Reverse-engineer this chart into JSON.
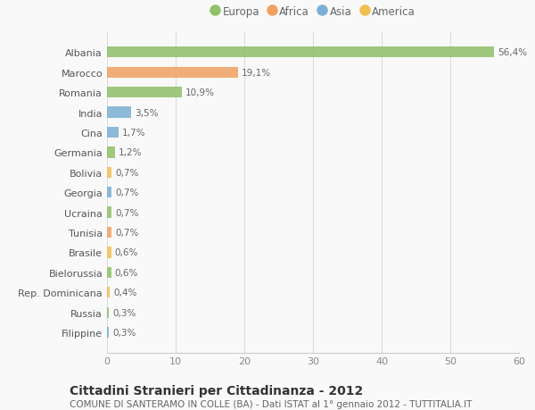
{
  "categories": [
    "Filippine",
    "Russia",
    "Rep. Dominicana",
    "Bielorussia",
    "Brasile",
    "Tunisia",
    "Ucraina",
    "Georgia",
    "Bolivia",
    "Germania",
    "Cina",
    "India",
    "Romania",
    "Marocco",
    "Albania"
  ],
  "values": [
    0.3,
    0.3,
    0.4,
    0.6,
    0.6,
    0.7,
    0.7,
    0.7,
    0.7,
    1.2,
    1.7,
    3.5,
    10.9,
    19.1,
    56.4
  ],
  "labels": [
    "0,3%",
    "0,3%",
    "0,4%",
    "0,6%",
    "0,6%",
    "0,7%",
    "0,7%",
    "0,7%",
    "0,7%",
    "1,2%",
    "1,7%",
    "3,5%",
    "10,9%",
    "19,1%",
    "56,4%"
  ],
  "colors": [
    "#7bafd4",
    "#90c068",
    "#f0c050",
    "#90c068",
    "#f0c050",
    "#f0a060",
    "#90c068",
    "#7bafd4",
    "#f0c050",
    "#90c068",
    "#7bafd4",
    "#7bafd4",
    "#90c068",
    "#f0a060",
    "#90c068"
  ],
  "continent": [
    "Asia",
    "Europa",
    "America",
    "Europa",
    "America",
    "Africa",
    "Europa",
    "Asia",
    "America",
    "Europa",
    "Asia",
    "Asia",
    "Europa",
    "Africa",
    "Europa"
  ],
  "legend_labels": [
    "Europa",
    "Africa",
    "Asia",
    "America"
  ],
  "legend_colors": [
    "#90c068",
    "#f0a060",
    "#7bafd4",
    "#f0c050"
  ],
  "title": "Cittadini Stranieri per Cittadinanza - 2012",
  "subtitle": "COMUNE DI SANTERAMO IN COLLE (BA) - Dati ISTAT al 1° gennaio 2012 - TUTTITALIA.IT",
  "xlim": [
    0,
    60
  ],
  "xticks": [
    0,
    10,
    20,
    30,
    40,
    50,
    60
  ],
  "bg_color": "#f9f9f9",
  "bar_height": 0.55,
  "title_fontsize": 10,
  "subtitle_fontsize": 7.5,
  "label_fontsize": 7.5,
  "tick_fontsize": 8,
  "legend_fontsize": 8.5
}
